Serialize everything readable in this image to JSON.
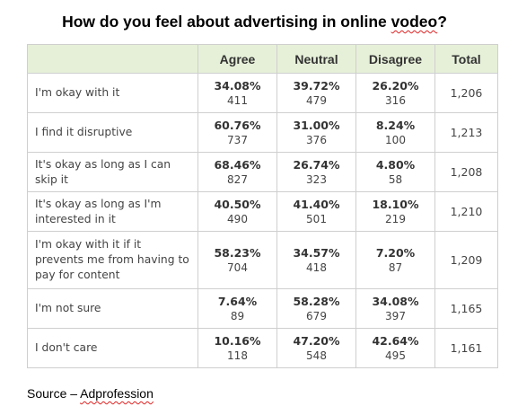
{
  "chart_data": {
    "type": "table",
    "title_prefix": "How do you feel about advertising in online ",
    "title_misspelled_word": "vodeo",
    "title_suffix": "?",
    "columns": [
      "Agree",
      "Neutral",
      "Disagree",
      "Total"
    ],
    "rows": [
      {
        "label": "I'm okay with it",
        "agree_pct": "34.08%",
        "agree_n": "411",
        "neutral_pct": "39.72%",
        "neutral_n": "479",
        "disagree_pct": "26.20%",
        "disagree_n": "316",
        "total": "1,206"
      },
      {
        "label": "I find it disruptive",
        "agree_pct": "60.76%",
        "agree_n": "737",
        "neutral_pct": "31.00%",
        "neutral_n": "376",
        "disagree_pct": "8.24%",
        "disagree_n": "100",
        "total": "1,213"
      },
      {
        "label": "It's okay as long as I can skip it",
        "agree_pct": "68.46%",
        "agree_n": "827",
        "neutral_pct": "26.74%",
        "neutral_n": "323",
        "disagree_pct": "4.80%",
        "disagree_n": "58",
        "total": "1,208"
      },
      {
        "label": "It's okay as long as I'm interested in it",
        "agree_pct": "40.50%",
        "agree_n": "490",
        "neutral_pct": "41.40%",
        "neutral_n": "501",
        "disagree_pct": "18.10%",
        "disagree_n": "219",
        "total": "1,210"
      },
      {
        "label": "I'm okay with it if it prevents me from having to pay for content",
        "agree_pct": "58.23%",
        "agree_n": "704",
        "neutral_pct": "34.57%",
        "neutral_n": "418",
        "disagree_pct": "7.20%",
        "disagree_n": "87",
        "total": "1,209"
      },
      {
        "label": "I'm not sure",
        "agree_pct": "7.64%",
        "agree_n": "89",
        "neutral_pct": "58.28%",
        "neutral_n": "679",
        "disagree_pct": "34.08%",
        "disagree_n": "397",
        "total": "1,165"
      },
      {
        "label": "I don't care",
        "agree_pct": "10.16%",
        "agree_n": "118",
        "neutral_pct": "47.20%",
        "neutral_n": "548",
        "disagree_pct": "42.64%",
        "disagree_n": "495",
        "total": "1,161"
      }
    ]
  },
  "source_prefix": "Source – ",
  "source_name": "Adprofession",
  "colors": {
    "header_fill": "#e6f0d8",
    "border": "#cfcfcf",
    "spellcheck_underline": "#dd2222"
  }
}
